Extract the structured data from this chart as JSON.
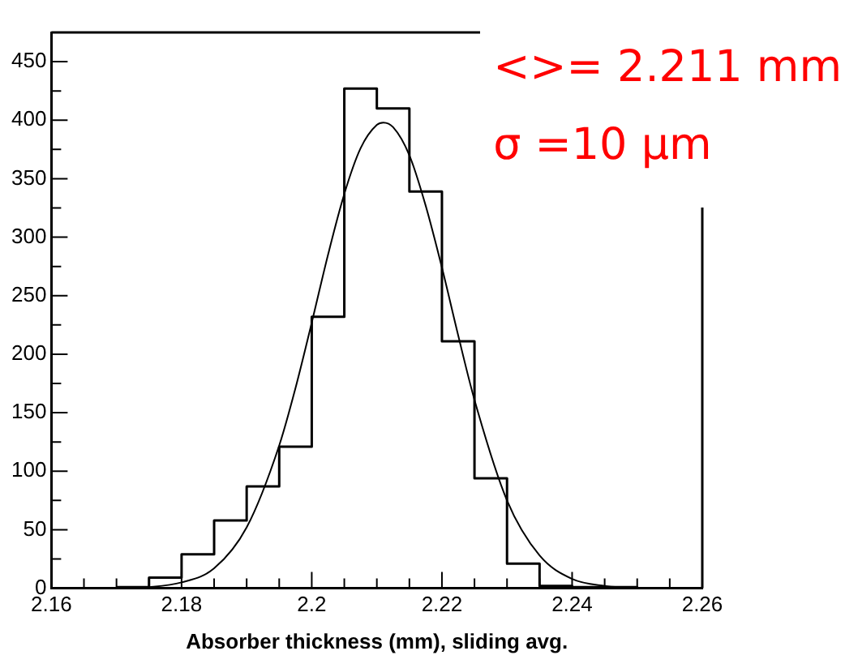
{
  "chart_data": {
    "type": "step",
    "xlabel": "Absorber thickness (mm), sliding avg.",
    "x": [
      2.17,
      2.175,
      2.18,
      2.185,
      2.19,
      2.195,
      2.2,
      2.205,
      2.21,
      2.215,
      2.22,
      2.225,
      2.23,
      2.235,
      2.24,
      2.245,
      2.25
    ],
    "values": [
      1,
      9,
      29,
      58,
      87,
      121,
      232,
      427,
      410,
      339,
      211,
      94,
      21,
      2,
      1,
      1,
      0
    ],
    "color": "#000000",
    "series": [
      {
        "type": "line",
        "color": "#000000",
        "x": [
          2.17,
          2.175,
          2.18,
          2.185,
          2.19,
          2.195,
          2.1975,
          2.2,
          2.2025,
          2.205,
          2.2075,
          2.21,
          2.211,
          2.2125,
          2.215,
          2.2175,
          2.22,
          2.2225,
          2.225,
          2.23,
          2.235,
          2.24,
          2.245,
          2.25
        ],
        "values": [
          0,
          1,
          5,
          17,
          52,
          122,
          171,
          227,
          285,
          337,
          376,
          396,
          398,
          394,
          370,
          327,
          274,
          216,
          161,
          75,
          28,
          8,
          2,
          0
        ]
      }
    ],
    "xlim": [
      2.16,
      2.26
    ],
    "xticks": [
      2.16,
      {
        "value": 2.165,
        "label": null
      },
      {
        "value": 2.17,
        "label": null
      },
      {
        "value": 2.175,
        "label": null
      },
      2.18,
      {
        "value": 2.185,
        "label": null
      },
      {
        "value": 2.19,
        "label": null
      },
      {
        "value": 2.195,
        "label": null
      },
      {
        "value": 2.2,
        "label": "2.2"
      },
      {
        "value": 2.205,
        "label": null
      },
      {
        "value": 2.21,
        "label": null
      },
      {
        "value": 2.215,
        "label": null
      },
      2.22,
      {
        "value": 2.225,
        "label": null
      },
      {
        "value": 2.23,
        "label": null
      },
      {
        "value": 2.235,
        "label": null
      },
      2.24,
      {
        "value": 2.245,
        "label": null
      },
      {
        "value": 2.25,
        "label": null
      },
      {
        "value": 2.255,
        "label": null
      },
      2.26
    ],
    "ylim": [
      0,
      475
    ],
    "yticks": [
      0,
      {
        "value": 25,
        "label": null
      },
      50,
      {
        "value": 75,
        "label": null
      },
      100,
      {
        "value": 125,
        "label": null
      },
      150,
      {
        "value": 175,
        "label": null
      },
      200,
      {
        "value": 225,
        "label": null
      },
      250,
      {
        "value": 275,
        "label": null
      },
      300,
      {
        "value": 325,
        "label": null
      },
      350,
      {
        "value": 375,
        "label": null
      },
      400,
      {
        "value": 425,
        "label": null
      },
      450
    ],
    "annotations": [
      "<>= 2.211 mm",
      "σ =10 μm"
    ],
    "grid": false,
    "legend": false,
    "marker": "none",
    "line_style": "solid"
  }
}
